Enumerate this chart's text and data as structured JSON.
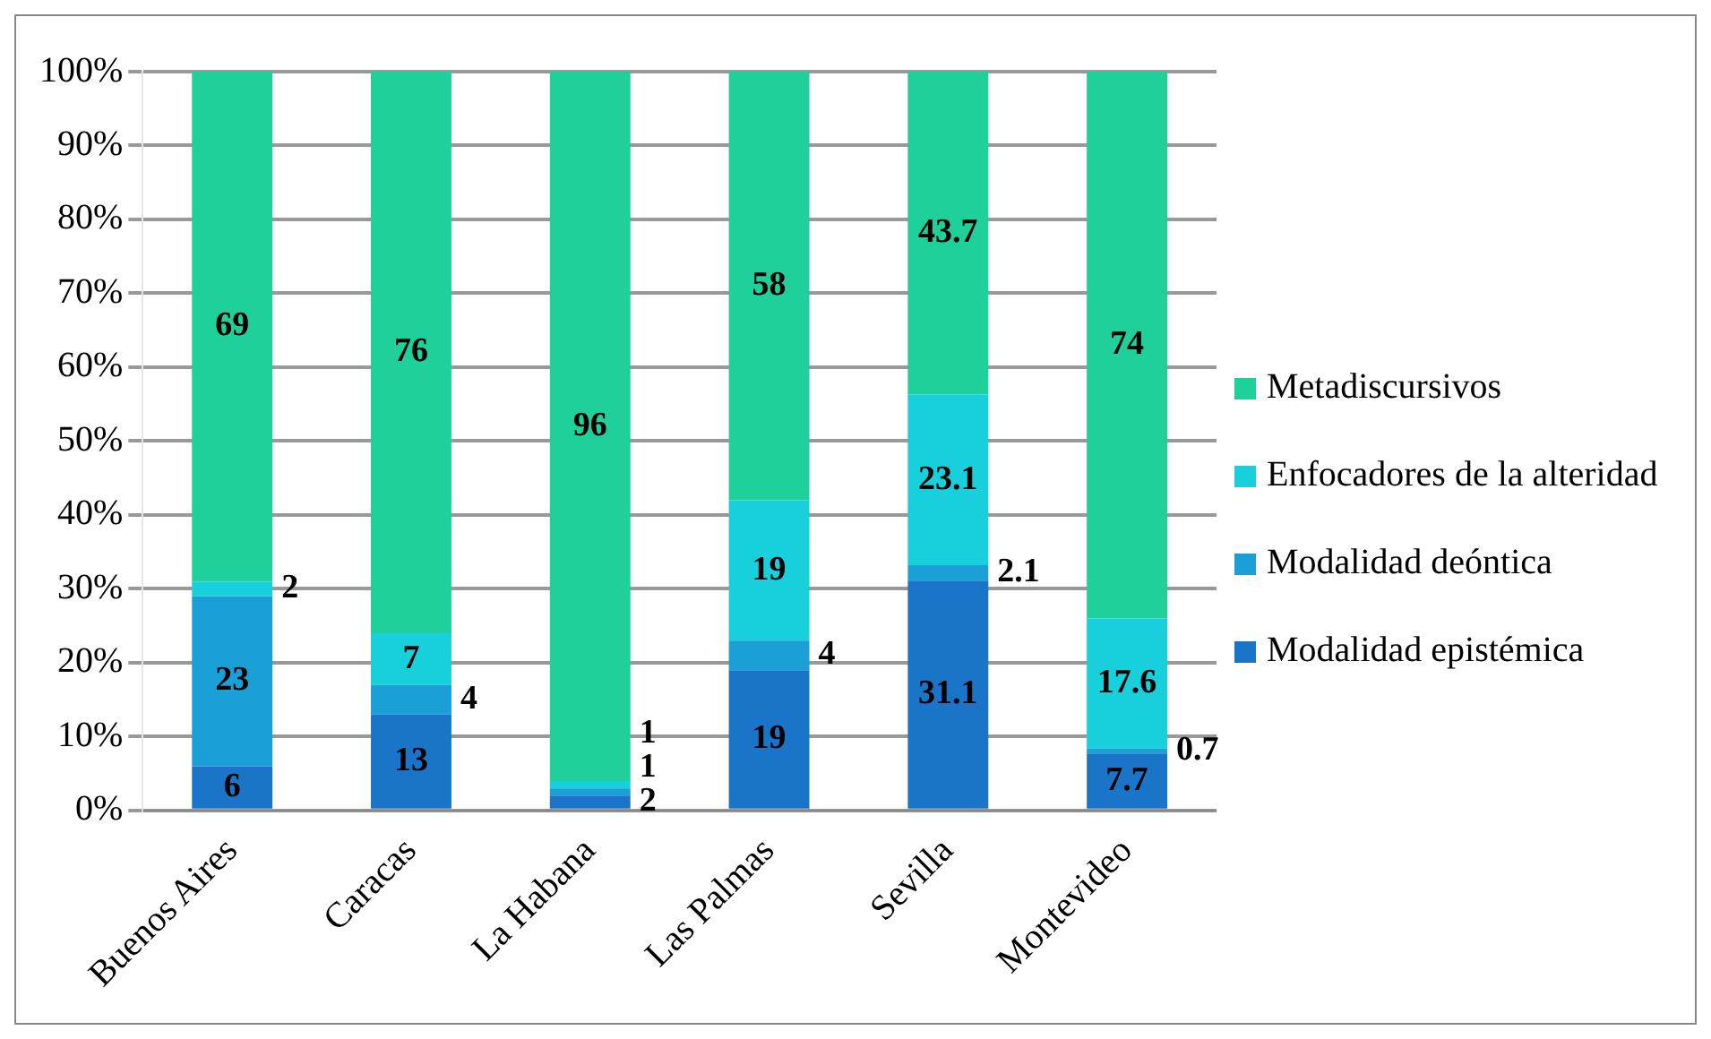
{
  "chart_data": {
    "type": "bar",
    "stacked": true,
    "categories": [
      "Buenos Aires",
      "Caracas",
      "La Habana",
      "Las Palmas",
      "Sevilla",
      "Montevideo"
    ],
    "series": [
      {
        "name": "Modalidad epistémica",
        "color": "#1a75c9",
        "values": [
          6,
          13,
          2,
          19,
          31.1,
          7.7
        ]
      },
      {
        "name": "Modalidad deóntica",
        "color": "#1a9fd6",
        "values": [
          23,
          4,
          1,
          4,
          2.1,
          0.7
        ]
      },
      {
        "name": "Enfocadores de la alteridad",
        "color": "#17d0dc",
        "values": [
          2,
          7,
          1,
          19,
          23.1,
          17.6
        ]
      },
      {
        "name": "Metadiscursivos",
        "color": "#1fd09a",
        "values": [
          69,
          76,
          96,
          58,
          43.7,
          74
        ]
      }
    ],
    "ylim": [
      0,
      100
    ],
    "yticks": [
      {
        "value": 0,
        "label": "0%"
      },
      {
        "value": 10,
        "label": "10%"
      },
      {
        "value": 20,
        "label": "20%"
      },
      {
        "value": 30,
        "label": "30%"
      },
      {
        "value": 40,
        "label": "40%"
      },
      {
        "value": 50,
        "label": "50%"
      },
      {
        "value": 60,
        "label": "60%"
      },
      {
        "value": 70,
        "label": "70%"
      },
      {
        "value": 80,
        "label": "80%"
      },
      {
        "value": 90,
        "label": "90%"
      },
      {
        "value": 100,
        "label": "100%"
      }
    ],
    "grid": "y",
    "legend": "right",
    "data_labels": true
  }
}
